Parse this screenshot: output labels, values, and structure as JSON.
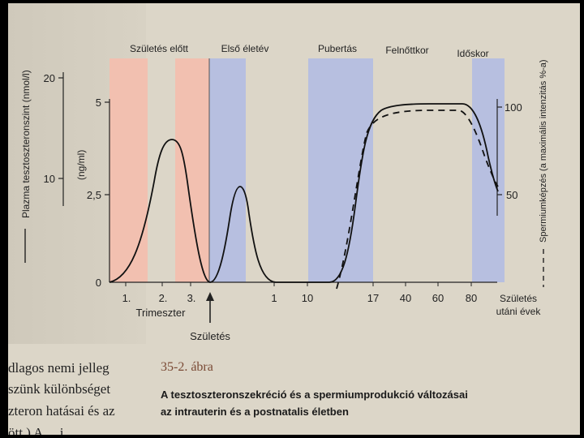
{
  "figure": {
    "phases": [
      "Születés előtt",
      "Első életév",
      "Pubertás",
      "Felnőttkor",
      "Időskor"
    ],
    "left_axis_label": "Plazma tesztoszteronszint (nmol/l)",
    "left_ticks": [
      "20",
      "10"
    ],
    "mid_axis_label": "(ng/ml)",
    "mid_ticks": [
      "5",
      "2,5",
      "0"
    ],
    "right_axis_label": "Spermiumképzés (a maximális intenzitás %-a)",
    "right_ticks": [
      "100",
      "50"
    ],
    "x_trimester_ticks": [
      "1.",
      "2.",
      "3."
    ],
    "x_trimester_label": "Trimeszter",
    "x_year_ticks": [
      "1",
      "10",
      "17",
      "40",
      "60",
      "80"
    ],
    "x_axis_label_line1": "Születés",
    "x_axis_label_line2": "utáni évek",
    "birth_label": "Születés"
  },
  "caption": {
    "number": "35-2. ábra",
    "title_line1": "A tesztoszteronszekréció és a spermiumprodukció változásai",
    "title_line2": "az intrauterin és a postnatalis életben"
  },
  "body_text": [
    "dlagos nemi jelleg",
    "szünk különbséget",
    "zteron hatásai és az",
    "ött.) A ... i ..."
  ],
  "colors": {
    "prenatal_band": "#f2c0b0",
    "postnatal_band": "#b7bfe0",
    "paper": "#dcd6c8"
  }
}
